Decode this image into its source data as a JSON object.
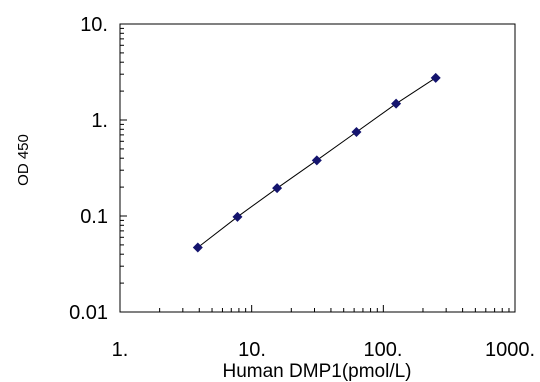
{
  "chart_data": {
    "type": "scatter",
    "title": "",
    "xlabel": "Human DMP1(pmol/L)",
    "ylabel": "OD 450",
    "xscale": "log",
    "yscale": "log",
    "xlim": [
      1,
      1000
    ],
    "ylim": [
      0.01,
      10
    ],
    "x_tick_labels": [
      "1.",
      "10.",
      "100.",
      "1000."
    ],
    "y_tick_labels": [
      "0.01",
      "0.1",
      "1.",
      "10."
    ],
    "grid": false,
    "legend": "none",
    "marker": "diamond",
    "marker_color": "#14146e",
    "line_color": "#000000",
    "series": [
      {
        "x": [
          3.9,
          7.8,
          15.6,
          31.25,
          62.5,
          125,
          250
        ],
        "y": [
          0.047,
          0.098,
          0.195,
          0.38,
          0.75,
          1.48,
          2.75
        ]
      }
    ]
  }
}
